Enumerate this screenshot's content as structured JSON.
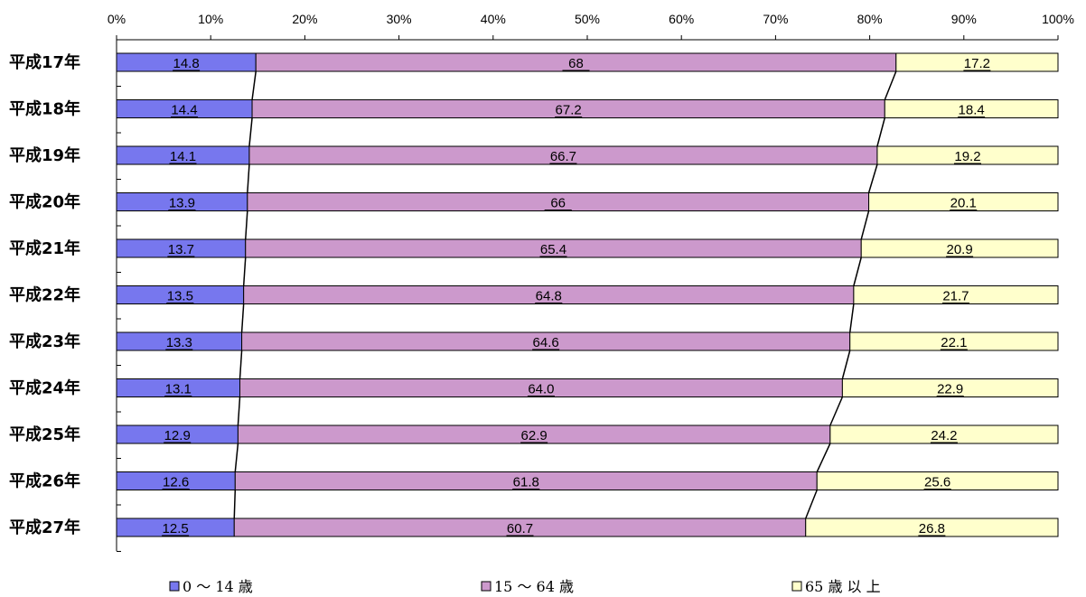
{
  "chart_data": {
    "type": "bar",
    "orientation": "horizontal",
    "stacked": "percent",
    "categories": [
      "平成17年",
      "平成18年",
      "平成19年",
      "平成20年",
      "平成21年",
      "平成22年",
      "平成23年",
      "平成24年",
      "平成25年",
      "平成26年",
      "平成27年"
    ],
    "series": [
      {
        "name": "0 ～ 14 歳",
        "color": "#7777ee",
        "values": [
          14.8,
          14.4,
          14.1,
          13.9,
          13.7,
          13.5,
          13.3,
          13.1,
          12.9,
          12.6,
          12.5
        ],
        "labels": [
          "14.8",
          "14.4",
          "14.1",
          "13.9",
          "13.7",
          "13.5",
          "13.3",
          "13.1",
          "12.9",
          "12.6",
          "12.5"
        ]
      },
      {
        "name": "15 ～ 64 歳",
        "color": "#cc99cc",
        "values": [
          68,
          67.2,
          66.7,
          66,
          65.4,
          64.8,
          64.6,
          64.0,
          62.9,
          61.8,
          60.7
        ],
        "labels": [
          "68",
          "67.2",
          "66.7",
          "66",
          "65.4",
          "64.8",
          "64.6",
          "64.0",
          "62.9",
          "61.8",
          "60.7"
        ]
      },
      {
        "name": "65 歳 以 上",
        "color": "#ffffcc",
        "values": [
          17.2,
          18.4,
          19.2,
          20.1,
          20.9,
          21.7,
          22.1,
          22.9,
          24.2,
          25.6,
          26.8
        ],
        "labels": [
          "17.2",
          "18.4",
          "19.2",
          "20.1",
          "20.9",
          "21.7",
          "22.1",
          "22.9",
          "24.2",
          "25.6",
          "26.8"
        ]
      }
    ],
    "xlim": [
      0,
      100
    ],
    "xticks": [
      "0%",
      "10%",
      "20%",
      "30%",
      "40%",
      "50%",
      "60%",
      "70%",
      "80%",
      "90%",
      "100%"
    ],
    "series_lines": true,
    "grid": false,
    "legend": "bottom"
  }
}
